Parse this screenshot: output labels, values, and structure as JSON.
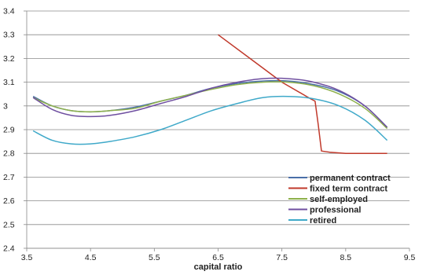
{
  "chart_data": {
    "type": "line",
    "title": "",
    "xlabel": "capital ratio",
    "ylabel": "",
    "xlim": [
      3.5,
      9.5
    ],
    "ylim": [
      2.4,
      3.4
    ],
    "x_ticks": [
      "3.5",
      "4.5",
      "5.5",
      "6.5",
      "7.5",
      "8.5",
      "9.5"
    ],
    "y_ticks": [
      "2.4",
      "2.5",
      "2.6",
      "2.7",
      "2.8",
      "2.9",
      "3",
      "3.1",
      "3.2",
      "3.3",
      "3.4"
    ],
    "grid": "horizontal",
    "legend_position": "bottom-right",
    "series": [
      {
        "name": "permanent contract",
        "color": "#4a6fa8",
        "points": [
          [
            3.6,
            3.04
          ],
          [
            3.9,
            3.0
          ],
          [
            4.2,
            2.98
          ],
          [
            4.5,
            2.975
          ],
          [
            4.8,
            2.98
          ],
          [
            5.2,
            2.995
          ],
          [
            5.6,
            3.02
          ],
          [
            6.0,
            3.045
          ],
          [
            6.4,
            3.075
          ],
          [
            6.8,
            3.095
          ],
          [
            7.2,
            3.105
          ],
          [
            7.6,
            3.105
          ],
          [
            8.0,
            3.09
          ],
          [
            8.4,
            3.06
          ],
          [
            8.8,
            3.0
          ],
          [
            9.15,
            2.91
          ]
        ]
      },
      {
        "name": "fixed term contract",
        "color": "#c0392b",
        "points": [
          [
            6.5,
            3.3
          ],
          [
            7.0,
            3.2
          ],
          [
            7.5,
            3.1
          ],
          [
            7.95,
            3.03
          ],
          [
            8.02,
            3.02
          ],
          [
            8.07,
            2.92
          ],
          [
            8.12,
            2.81
          ],
          [
            8.25,
            2.805
          ],
          [
            8.5,
            2.8
          ],
          [
            9.15,
            2.8
          ]
        ]
      },
      {
        "name": "self-employed",
        "color": "#8db04a",
        "points": [
          [
            3.6,
            3.035
          ],
          [
            3.9,
            3.0
          ],
          [
            4.2,
            2.98
          ],
          [
            4.5,
            2.975
          ],
          [
            4.8,
            2.98
          ],
          [
            5.2,
            2.99
          ],
          [
            5.6,
            3.02
          ],
          [
            6.0,
            3.045
          ],
          [
            6.4,
            3.07
          ],
          [
            6.8,
            3.09
          ],
          [
            7.2,
            3.1
          ],
          [
            7.6,
            3.1
          ],
          [
            8.0,
            3.085
          ],
          [
            8.4,
            3.05
          ],
          [
            8.8,
            2.99
          ],
          [
            9.15,
            2.905
          ]
        ]
      },
      {
        "name": "professional",
        "color": "#6f4fa0",
        "points": [
          [
            3.6,
            3.035
          ],
          [
            3.9,
            2.985
          ],
          [
            4.2,
            2.96
          ],
          [
            4.5,
            2.955
          ],
          [
            4.8,
            2.96
          ],
          [
            5.2,
            2.98
          ],
          [
            5.6,
            3.01
          ],
          [
            6.0,
            3.04
          ],
          [
            6.4,
            3.075
          ],
          [
            6.8,
            3.1
          ],
          [
            7.2,
            3.115
          ],
          [
            7.6,
            3.115
          ],
          [
            8.0,
            3.1
          ],
          [
            8.4,
            3.065
          ],
          [
            8.8,
            3.0
          ],
          [
            9.15,
            2.91
          ]
        ]
      },
      {
        "name": "retired",
        "color": "#3fa9c9",
        "points": [
          [
            3.6,
            2.895
          ],
          [
            3.9,
            2.855
          ],
          [
            4.2,
            2.84
          ],
          [
            4.5,
            2.84
          ],
          [
            4.8,
            2.85
          ],
          [
            5.2,
            2.87
          ],
          [
            5.6,
            2.9
          ],
          [
            6.0,
            2.94
          ],
          [
            6.4,
            2.98
          ],
          [
            6.8,
            3.01
          ],
          [
            7.2,
            3.035
          ],
          [
            7.6,
            3.04
          ],
          [
            8.0,
            3.03
          ],
          [
            8.4,
            3.0
          ],
          [
            8.8,
            2.94
          ],
          [
            9.15,
            2.855
          ]
        ]
      }
    ]
  }
}
